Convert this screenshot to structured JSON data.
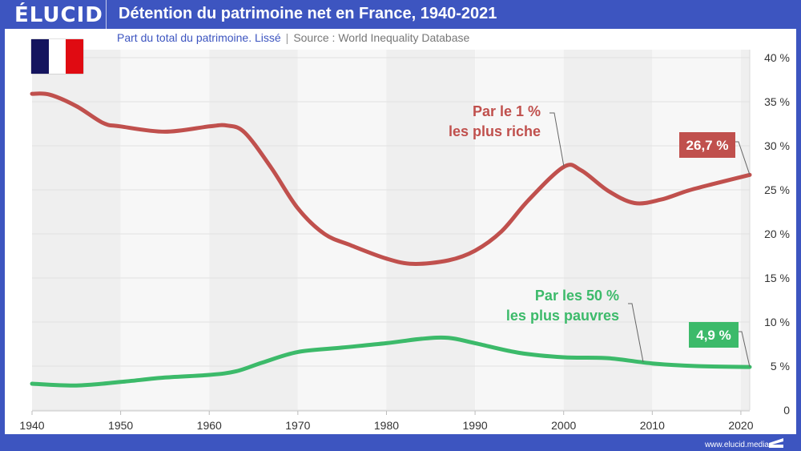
{
  "header": {
    "logo": "ÉLUCID",
    "title": "Détention du patrimoine net en France, 1940-2021"
  },
  "subtitle": {
    "text": "Part du total du patrimoine. Lissé",
    "separator": "|",
    "source": "Source : World Inequality Database"
  },
  "flag": {
    "colors": [
      "#14145e",
      "#ffffff",
      "#e00b12"
    ],
    "country": "France"
  },
  "footer": {
    "url": "www.elucid.media"
  },
  "chart_data": {
    "type": "line",
    "title": "Détention du patrimoine net en France, 1940-2021",
    "subtitle": "Part du total du patrimoine. Lissé | Source : World Inequality Database",
    "xlabel": "",
    "ylabel": "",
    "xlim": [
      1940,
      2021
    ],
    "ylim": [
      0,
      40
    ],
    "x_ticks": [
      1940,
      1950,
      1960,
      1970,
      1980,
      1990,
      2000,
      2010,
      2020
    ],
    "x_tick_labels": [
      "1940",
      "1950",
      "1960",
      "1970",
      "1980",
      "1990",
      "2000",
      "2010",
      "2020"
    ],
    "y_ticks": [
      0,
      5,
      10,
      15,
      20,
      25,
      30,
      35,
      40
    ],
    "y_tick_labels": [
      "0",
      "5 %",
      "10 %",
      "15 %",
      "20 %",
      "25 %",
      "30 %",
      "35 %",
      "40 %"
    ],
    "y_axis_side": "right",
    "grid": true,
    "series": [
      {
        "name": "Par le 1 % les plus riche",
        "label_lines": [
          "Par le 1 %",
          "les plus riche"
        ],
        "color": "#c0504d",
        "end_label": "26,7 %",
        "x": [
          1940,
          1942,
          1945,
          1948,
          1950,
          1955,
          1960,
          1962,
          1964,
          1967,
          1970,
          1973,
          1976,
          1980,
          1983,
          1987,
          1990,
          1993,
          1996,
          2000,
          2002,
          2005,
          2008,
          2011,
          2014,
          2017,
          2021
        ],
        "values": [
          35.9,
          35.8,
          34.5,
          32.6,
          32.2,
          31.6,
          32.2,
          32.3,
          31.5,
          27.5,
          22.9,
          20.0,
          18.7,
          17.2,
          16.6,
          17.0,
          18.1,
          20.3,
          23.8,
          27.6,
          27.2,
          24.9,
          23.5,
          23.9,
          24.9,
          25.7,
          26.7
        ]
      },
      {
        "name": "Par les 50 % les plus pauvres",
        "label_lines": [
          "Par les 50 %",
          "les plus pauvres"
        ],
        "color": "#3cba6a",
        "end_label": "4,9 %",
        "x": [
          1940,
          1945,
          1950,
          1955,
          1960,
          1963,
          1966,
          1970,
          1975,
          1980,
          1984,
          1987,
          1990,
          1995,
          2000,
          2005,
          2010,
          2015,
          2021
        ],
        "values": [
          3.0,
          2.8,
          3.2,
          3.7,
          4.0,
          4.4,
          5.4,
          6.6,
          7.1,
          7.6,
          8.1,
          8.2,
          7.6,
          6.5,
          6.0,
          5.9,
          5.3,
          5.0,
          4.9
        ]
      }
    ],
    "legend": "inline annotations"
  }
}
